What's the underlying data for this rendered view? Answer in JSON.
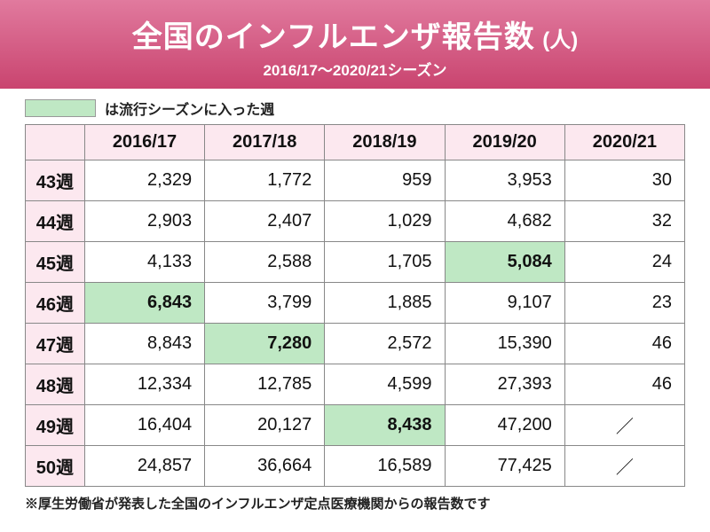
{
  "colors": {
    "header_gradient_top": "#e17a9e",
    "header_gradient_bottom": "#c9446f",
    "header_text": "#ffffff",
    "th_bg": "#fce8ef",
    "highlight_bg": "#bfe8c4",
    "border": "#888888",
    "text": "#111111",
    "bg": "#ffffff"
  },
  "header": {
    "title": "全国のインフルエンザ報告数",
    "unit": "(人)",
    "subtitle": "2016/17〜2020/21シーズン"
  },
  "legend": {
    "text": "は流行シーズンに入った週"
  },
  "table": {
    "columns": [
      "",
      "2016/17",
      "2017/18",
      "2018/19",
      "2019/20",
      "2020/21"
    ],
    "col_widths": [
      "9%",
      "18.2%",
      "18.2%",
      "18.2%",
      "18.2%",
      "18.2%"
    ],
    "rows": [
      {
        "label": "43週",
        "cells": [
          "2,329",
          "1,772",
          "959",
          "3,953",
          "30"
        ],
        "hl": [
          false,
          false,
          false,
          false,
          false
        ]
      },
      {
        "label": "44週",
        "cells": [
          "2,903",
          "2,407",
          "1,029",
          "4,682",
          "32"
        ],
        "hl": [
          false,
          false,
          false,
          false,
          false
        ]
      },
      {
        "label": "45週",
        "cells": [
          "4,133",
          "2,588",
          "1,705",
          "5,084",
          "24"
        ],
        "hl": [
          false,
          false,
          false,
          true,
          false
        ]
      },
      {
        "label": "46週",
        "cells": [
          "6,843",
          "3,799",
          "1,885",
          "9,107",
          "23"
        ],
        "hl": [
          true,
          false,
          false,
          false,
          false
        ]
      },
      {
        "label": "47週",
        "cells": [
          "8,843",
          "7,280",
          "2,572",
          "15,390",
          "46"
        ],
        "hl": [
          false,
          true,
          false,
          false,
          false
        ]
      },
      {
        "label": "48週",
        "cells": [
          "12,334",
          "12,785",
          "4,599",
          "27,393",
          "46"
        ],
        "hl": [
          false,
          false,
          false,
          false,
          false
        ]
      },
      {
        "label": "49週",
        "cells": [
          "16,404",
          "20,127",
          "8,438",
          "47,200",
          "／"
        ],
        "hl": [
          false,
          false,
          true,
          false,
          false
        ]
      },
      {
        "label": "50週",
        "cells": [
          "24,857",
          "36,664",
          "16,589",
          "77,425",
          "／"
        ],
        "hl": [
          false,
          false,
          false,
          false,
          false
        ]
      }
    ]
  },
  "footnote": "※厚生労働省が発表した全国のインフルエンザ定点医療機関からの報告数です"
}
